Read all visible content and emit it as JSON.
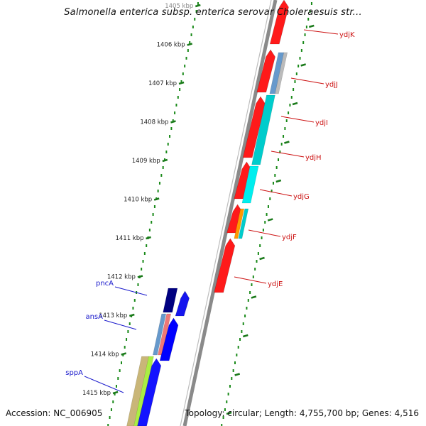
{
  "header": {
    "title": "Salmonella enterica subsp. enterica serovar Choleraesuis str..."
  },
  "footer": {
    "accession": "Accession: NC_006905",
    "summary": "Topology: circular; Length: 4,755,700 bp; Genes: 4,516"
  },
  "colors": {
    "backbone": "#8a8a8a",
    "tick_marks": "#1a7a1a",
    "minor_dots": "#1a8a1a",
    "label_forward": "#1a1acc",
    "label_reverse": "#cc1111"
  },
  "scale": {
    "unit": "kbp",
    "ticks": [
      "1405 kbp",
      "1406 kbp",
      "1407 kbp",
      "1408 kbp",
      "1409 kbp",
      "1410 kbp",
      "1411 kbp",
      "1412 kbp",
      "1413 kbp",
      "1414 kbp",
      "1415 kbp"
    ]
  },
  "genes_reverse_strand": [
    {
      "name": "ydjK",
      "color": "#ff1a1a"
    },
    {
      "name": "ydjJ",
      "color": "#ff1a1a"
    },
    {
      "name": "ydjI",
      "color": "#ff1a1a"
    },
    {
      "name": "ydjH",
      "color": "#ff1a1a"
    },
    {
      "name": "ydjG",
      "color": "#ff1a1a"
    },
    {
      "name": "ydjF",
      "color": "#ff1a1a"
    },
    {
      "name": "ydjE",
      "color": "#ff1a1a"
    }
  ],
  "genes_forward_strand": [
    {
      "name": "pncA",
      "color": "#0000ee"
    },
    {
      "name": "ansA",
      "color": "#0000ee"
    },
    {
      "name": "sppA",
      "color": "#0000ee"
    }
  ],
  "features": {
    "cog_track_colors": [
      "#6699cc",
      "#00cccc",
      "#ff9900",
      "#000080",
      "#ee7777",
      "#aaee44"
    ]
  }
}
